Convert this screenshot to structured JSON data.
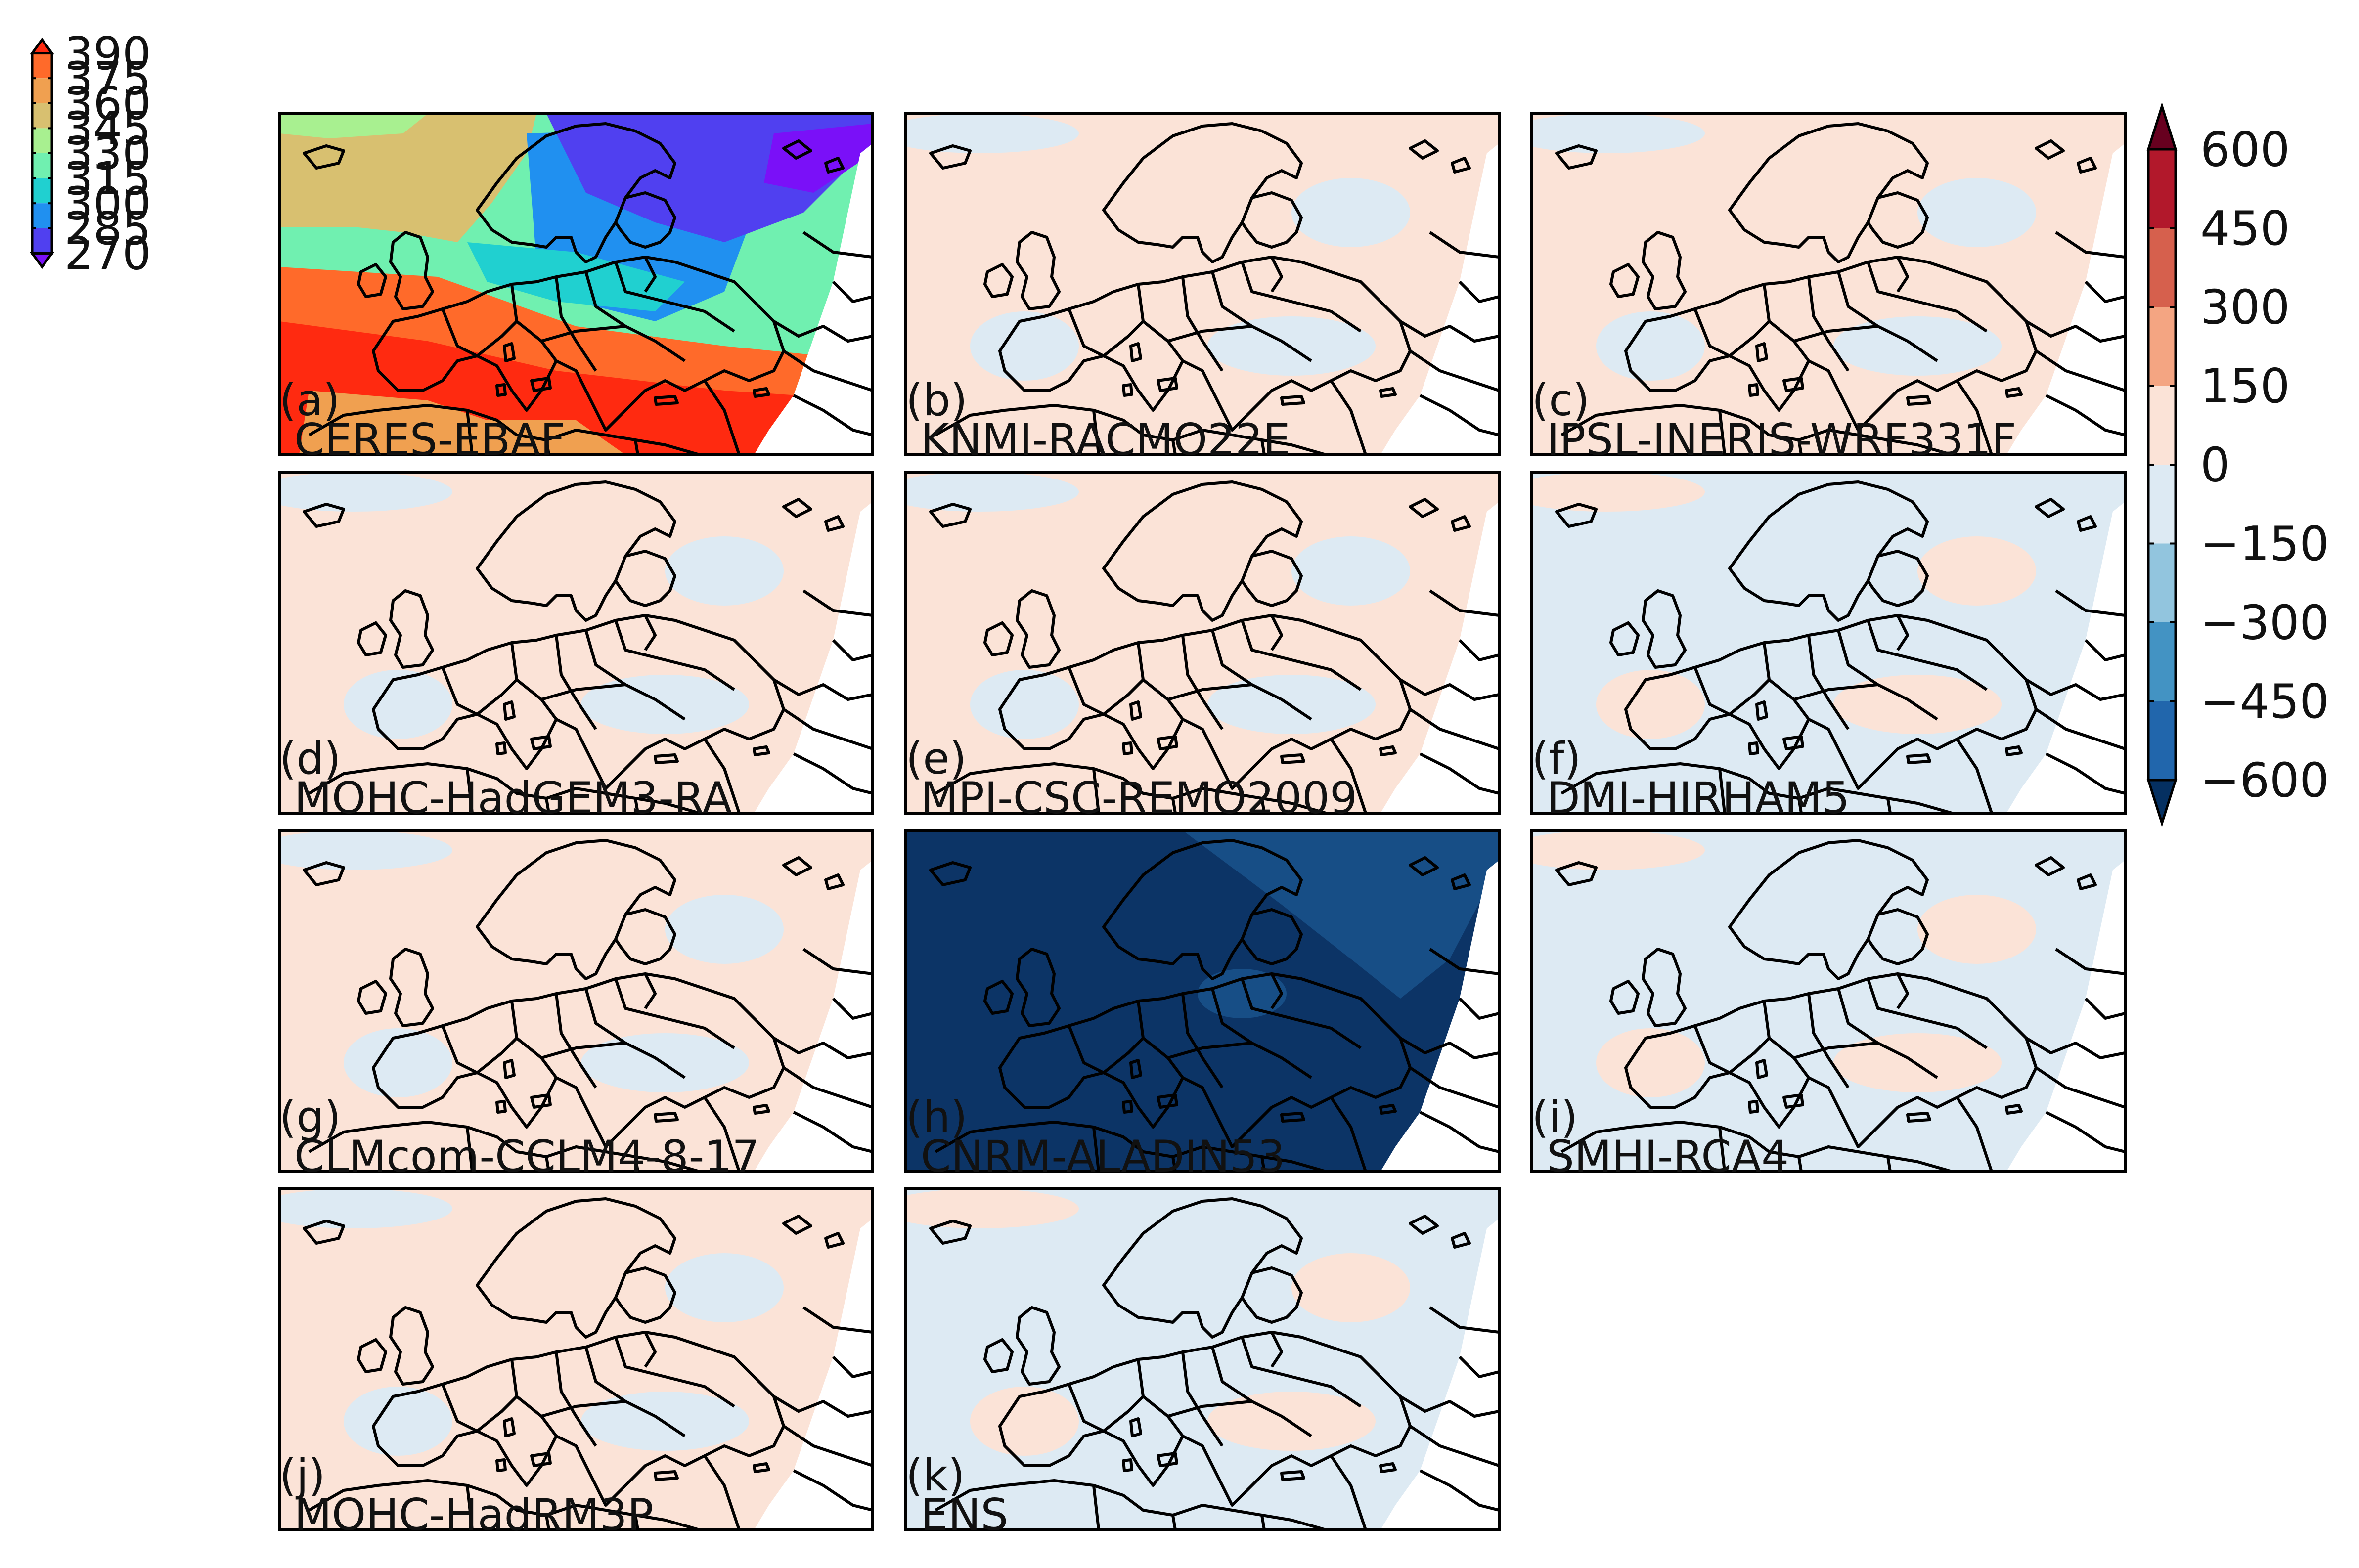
{
  "panels": [
    {
      "id": "a",
      "letter": "(a)",
      "name": "CERES-EBAF",
      "field": "absolute"
    },
    {
      "id": "b",
      "letter": "(b)",
      "name": "KNMI-RACMO22E",
      "field": "bias",
      "main": "pos",
      "alt": "neg"
    },
    {
      "id": "c",
      "letter": "(c)",
      "name": "IPSL-INERIS-WRF331F",
      "field": "bias",
      "main": "pos",
      "alt": "neg"
    },
    {
      "id": "d",
      "letter": "(d)",
      "name": "MOHC-HadGEM3-RA",
      "field": "bias",
      "main": "pos",
      "alt": "neg"
    },
    {
      "id": "e",
      "letter": "(e)",
      "name": "MPI-CSC-REMO2009",
      "field": "bias",
      "main": "pos",
      "alt": "neg"
    },
    {
      "id": "f",
      "letter": "(f)",
      "name": "DMI-HIRHAM5",
      "field": "bias",
      "main": "neg",
      "alt": "pos"
    },
    {
      "id": "g",
      "letter": "(g)",
      "name": "CLMcom-CCLM4-8-17",
      "field": "bias",
      "main": "pos",
      "alt": "neg"
    },
    {
      "id": "h",
      "letter": "(h)",
      "name": "CNRM-ALADIN53",
      "field": "strongneg"
    },
    {
      "id": "i",
      "letter": "(i)",
      "name": "SMHI-RCA4",
      "field": "bias",
      "main": "neg",
      "alt": "pos"
    },
    {
      "id": "j",
      "letter": "(j)",
      "name": "MOHC-HadRM3P",
      "field": "bias",
      "main": "pos",
      "alt": "neg"
    },
    {
      "id": "k",
      "letter": "(k)",
      "name": "ENS",
      "field": "bias",
      "main": "neg",
      "alt": "pos"
    }
  ],
  "colorbar_small": {
    "ticks": [
      "390",
      "375",
      "360",
      "345",
      "330",
      "315",
      "300",
      "285",
      "270"
    ],
    "colors": [
      "#ff2a10",
      "#ff6a2a",
      "#f0a050",
      "#d8c070",
      "#a8f090",
      "#70f0b0",
      "#20d0d0",
      "#2090f0",
      "#5040f0",
      "#7a10f8"
    ]
  },
  "colorbar_large": {
    "ticks": [
      "600",
      "450",
      "300",
      "150",
      "0",
      "−150",
      "−300",
      "−450",
      "−600"
    ],
    "colors": [
      "#67001f",
      "#b2182b",
      "#d6604d",
      "#f4a582",
      "#fbe3d7",
      "#ddeaf3",
      "#92c5de",
      "#4393c3",
      "#2166ac",
      "#053061"
    ]
  },
  "colors": {
    "bias_pos": "#fbe3d7",
    "bias_neg": "#ddeaf3",
    "strong_neg_main": "#0c3466",
    "strong_neg_alt": "#174e86",
    "coast": "#000000"
  }
}
